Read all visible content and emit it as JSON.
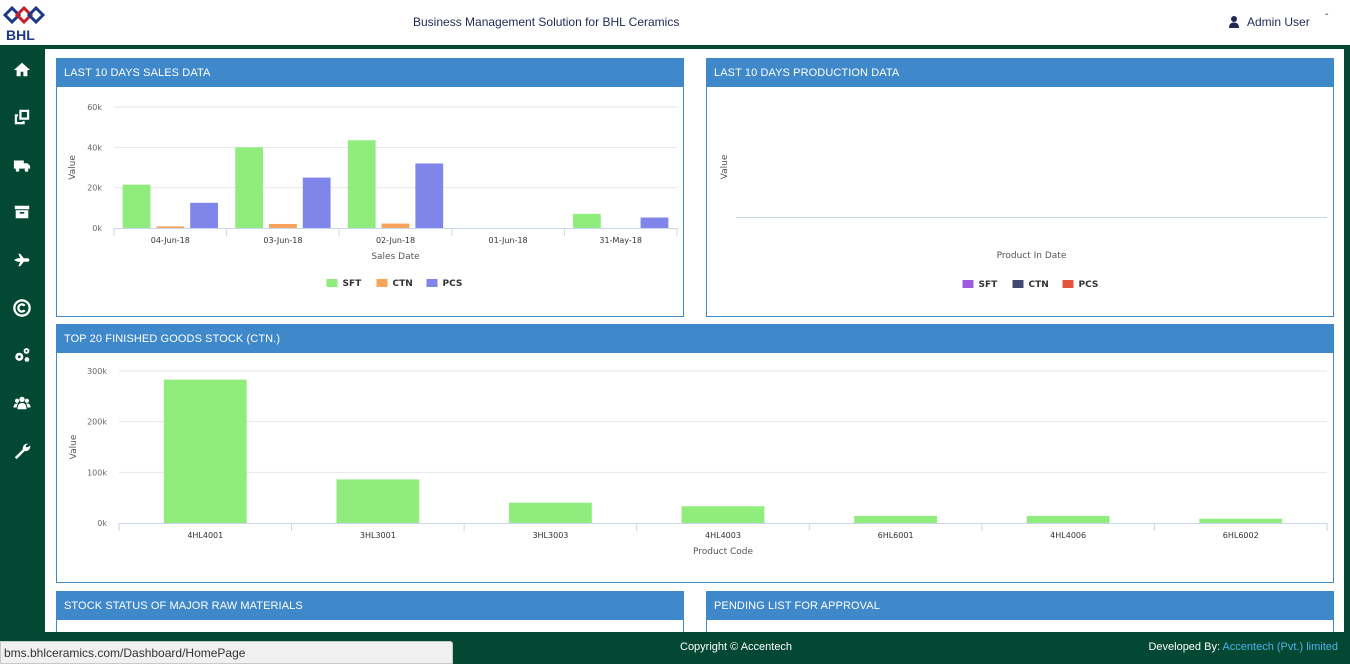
{
  "header": {
    "logo_text": "BHL",
    "title": "Business Management Solution for BHL Ceramics",
    "user_name": "Admin User",
    "user_caret": "ˇ",
    "brand_color": "#034832",
    "accent_color": "#3f88c9"
  },
  "sidebar": {
    "items": [
      {
        "icon": "home-icon"
      },
      {
        "icon": "clone-icon"
      },
      {
        "icon": "truck-icon"
      },
      {
        "icon": "archive-icon"
      },
      {
        "icon": "plane-icon"
      },
      {
        "icon": "copyright-icon"
      },
      {
        "icon": "gears-icon"
      },
      {
        "icon": "users-icon"
      },
      {
        "icon": "wrench-icon"
      }
    ]
  },
  "panels": {
    "sales": {
      "title": "LAST 10 DAYS SALES DATA"
    },
    "production": {
      "title": "LAST 10 DAYS PRODUCTION DATA"
    },
    "stock": {
      "title": "TOP 20 FINISHED GOODS STOCK (CTN.)"
    },
    "raw": {
      "title": "STOCK STATUS OF MAJOR RAW MATERIALS"
    },
    "pending": {
      "title": "PENDING LIST FOR APPROVAL"
    }
  },
  "chart_data": [
    {
      "type": "bar",
      "title": "LAST 10 DAYS SALES DATA",
      "xlabel": "Sales Date",
      "ylabel": "Value",
      "categories": [
        "04-Jun-18",
        "03-Jun-18",
        "02-Jun-18",
        "01-Jun-18",
        "31-May-18"
      ],
      "series": [
        {
          "name": "SFT",
          "color": "#90ed7d",
          "values": [
            21500,
            40000,
            43500,
            0,
            7000
          ]
        },
        {
          "name": "CTN",
          "color": "#f7a35c",
          "values": [
            800,
            2000,
            2200,
            0,
            0
          ]
        },
        {
          "name": "PCS",
          "color": "#8085e9",
          "values": [
            12500,
            25000,
            32000,
            0,
            5200
          ]
        }
      ],
      "yticks": [
        "0k",
        "20k",
        "40k",
        "60k"
      ],
      "ylim": [
        0,
        60000
      ],
      "grid": true,
      "legend": "bottom-center"
    },
    {
      "type": "bar",
      "title": "LAST 10 DAYS PRODUCTION DATA",
      "xlabel": "Product In Date",
      "ylabel": "Value",
      "categories": [],
      "series": [
        {
          "name": "SFT",
          "color": "#a05ae0",
          "values": []
        },
        {
          "name": "CTN",
          "color": "#434873",
          "values": []
        },
        {
          "name": "PCS",
          "color": "#e5533d",
          "values": []
        }
      ],
      "legend": "bottom-center"
    },
    {
      "type": "bar",
      "title": "TOP 20 FINISHED GOODS STOCK (CTN.)",
      "xlabel": "Product Code",
      "ylabel": "Value",
      "categories": [
        "4HL4001",
        "3HL3001",
        "3HL3003",
        "4HL4003",
        "6HL6001",
        "4HL4006",
        "6HL6002"
      ],
      "series": [
        {
          "color": "#90ed7d",
          "values": [
            283000,
            86000,
            40000,
            33000,
            14000,
            14000,
            8500
          ]
        }
      ],
      "yticks": [
        "0k",
        "100k",
        "200k",
        "300k"
      ],
      "ylim": [
        0,
        300000
      ],
      "grid": true
    }
  ],
  "footer": {
    "copyright": "Copyright © Accentech",
    "developed_prefix": "Developed By: ",
    "developed_link": "Accentech (Pvt.) limited"
  },
  "status_bar": {
    "url": "bms.bhlceramics.com/Dashboard/HomePage"
  }
}
